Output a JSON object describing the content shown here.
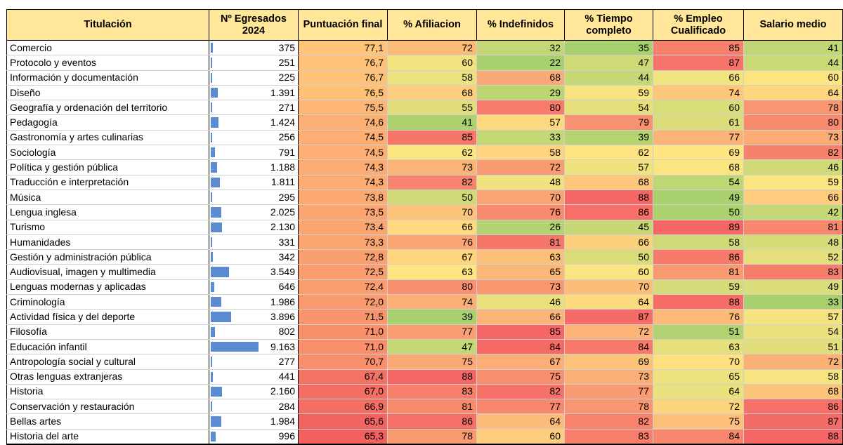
{
  "headers": {
    "titulacion": "Titulación",
    "egresados_line1": "Nº Egresados",
    "egresados_line2": "2024",
    "puntuacion": "Puntuación final",
    "afiliacion": "% Afiliacion",
    "indefinidos": "% Indefinidos",
    "tiempo_line1": "% Tiempo",
    "tiempo_line2": "completo",
    "empleo_line1": "% Empleo",
    "empleo_line2": "Cualificado",
    "salario": "Salario medio"
  },
  "rows": [
    {
      "name": "Comercio",
      "grads": "375",
      "grads_n": 375,
      "score": "77,1",
      "afil": "72",
      "indef": "32",
      "tiempo": "35",
      "empleo": "85",
      "salario": "41"
    },
    {
      "name": "Protocolo y eventos",
      "grads": "251",
      "grads_n": 251,
      "score": "76,7",
      "afil": "60",
      "indef": "22",
      "tiempo": "47",
      "empleo": "87",
      "salario": "44"
    },
    {
      "name": "Información y documentación",
      "grads": "225",
      "grads_n": 225,
      "score": "76,7",
      "afil": "58",
      "indef": "68",
      "tiempo": "44",
      "empleo": "66",
      "salario": "60"
    },
    {
      "name": "Diseño",
      "grads": "1.391",
      "grads_n": 1391,
      "score": "76,5",
      "afil": "68",
      "indef": "29",
      "tiempo": "59",
      "empleo": "74",
      "salario": "64"
    },
    {
      "name": "Geografía y ordenación del territorio",
      "grads": "271",
      "grads_n": 271,
      "score": "75,5",
      "afil": "55",
      "indef": "80",
      "tiempo": "54",
      "empleo": "60",
      "salario": "78"
    },
    {
      "name": "Pedagogía",
      "grads": "1.424",
      "grads_n": 1424,
      "score": "74,6",
      "afil": "41",
      "indef": "57",
      "tiempo": "79",
      "empleo": "61",
      "salario": "80"
    },
    {
      "name": "Gastronomía y artes culinarias",
      "grads": "256",
      "grads_n": 256,
      "score": "74,5",
      "afil": "85",
      "indef": "33",
      "tiempo": "39",
      "empleo": "77",
      "salario": "73"
    },
    {
      "name": "Sociología",
      "grads": "791",
      "grads_n": 791,
      "score": "74,5",
      "afil": "62",
      "indef": "58",
      "tiempo": "62",
      "empleo": "69",
      "salario": "82"
    },
    {
      "name": "Política y gestión pública",
      "grads": "1.188",
      "grads_n": 1188,
      "score": "74,3",
      "afil": "73",
      "indef": "72",
      "tiempo": "57",
      "empleo": "68",
      "salario": "46"
    },
    {
      "name": "Traducción e interpretación",
      "grads": "1.811",
      "grads_n": 1811,
      "score": "74,3",
      "afil": "82",
      "indef": "48",
      "tiempo": "68",
      "empleo": "54",
      "salario": "59"
    },
    {
      "name": "Música",
      "grads": "295",
      "grads_n": 295,
      "score": "73,8",
      "afil": "50",
      "indef": "70",
      "tiempo": "88",
      "empleo": "49",
      "salario": "66"
    },
    {
      "name": "Lengua inglesa",
      "grads": "2.025",
      "grads_n": 2025,
      "score": "73,5",
      "afil": "70",
      "indef": "76",
      "tiempo": "86",
      "empleo": "50",
      "salario": "42"
    },
    {
      "name": "Turismo",
      "grads": "2.130",
      "grads_n": 2130,
      "score": "73,4",
      "afil": "66",
      "indef": "26",
      "tiempo": "45",
      "empleo": "89",
      "salario": "81"
    },
    {
      "name": "Humanidades",
      "grads": "331",
      "grads_n": 331,
      "score": "73,3",
      "afil": "76",
      "indef": "81",
      "tiempo": "66",
      "empleo": "58",
      "salario": "48"
    },
    {
      "name": "Gestión y administración pública",
      "grads": "342",
      "grads_n": 342,
      "score": "72,8",
      "afil": "67",
      "indef": "63",
      "tiempo": "50",
      "empleo": "86",
      "salario": "52"
    },
    {
      "name": "Audiovisual, imagen y multimedia",
      "grads": "3.549",
      "grads_n": 3549,
      "score": "72,5",
      "afil": "63",
      "indef": "65",
      "tiempo": "60",
      "empleo": "81",
      "salario": "83"
    },
    {
      "name": "Lenguas modernas y aplicadas",
      "grads": "646",
      "grads_n": 646,
      "score": "72,4",
      "afil": "80",
      "indef": "73",
      "tiempo": "70",
      "empleo": "59",
      "salario": "49"
    },
    {
      "name": "Criminología",
      "grads": "1.986",
      "grads_n": 1986,
      "score": "72,0",
      "afil": "74",
      "indef": "46",
      "tiempo": "64",
      "empleo": "88",
      "salario": "33"
    },
    {
      "name": "Actividad física y del deporte",
      "grads": "3.896",
      "grads_n": 3896,
      "score": "71,5",
      "afil": "39",
      "indef": "66",
      "tiempo": "87",
      "empleo": "76",
      "salario": "57"
    },
    {
      "name": "Filosofía",
      "grads": "802",
      "grads_n": 802,
      "score": "71,0",
      "afil": "77",
      "indef": "85",
      "tiempo": "72",
      "empleo": "51",
      "salario": "54"
    },
    {
      "name": "Educación infantil",
      "grads": "9.163",
      "grads_n": 9163,
      "score": "71,0",
      "afil": "47",
      "indef": "84",
      "tiempo": "84",
      "empleo": "63",
      "salario": "51"
    },
    {
      "name": "Antropología social y cultural",
      "grads": "277",
      "grads_n": 277,
      "score": "70,7",
      "afil": "75",
      "indef": "67",
      "tiempo": "69",
      "empleo": "70",
      "salario": "72"
    },
    {
      "name": "Otras lenguas extranjeras",
      "grads": "441",
      "grads_n": 441,
      "score": "67,4",
      "afil": "88",
      "indef": "75",
      "tiempo": "73",
      "empleo": "65",
      "salario": "58"
    },
    {
      "name": "Historia",
      "grads": "2.160",
      "grads_n": 2160,
      "score": "67,0",
      "afil": "83",
      "indef": "82",
      "tiempo": "77",
      "empleo": "64",
      "salario": "68"
    },
    {
      "name": "Conservación y restauración",
      "grads": "284",
      "grads_n": 284,
      "score": "66,9",
      "afil": "81",
      "indef": "77",
      "tiempo": "78",
      "empleo": "72",
      "salario": "86"
    },
    {
      "name": "Bellas artes",
      "grads": "1.984",
      "grads_n": 1984,
      "score": "65,6",
      "afil": "86",
      "indef": "64",
      "tiempo": "82",
      "empleo": "75",
      "salario": "87"
    },
    {
      "name": "Historia del arte",
      "grads": "996",
      "grads_n": 996,
      "score": "65,3",
      "afil": "78",
      "indef": "60",
      "tiempo": "83",
      "empleo": "84",
      "salario": "88"
    }
  ]
}
